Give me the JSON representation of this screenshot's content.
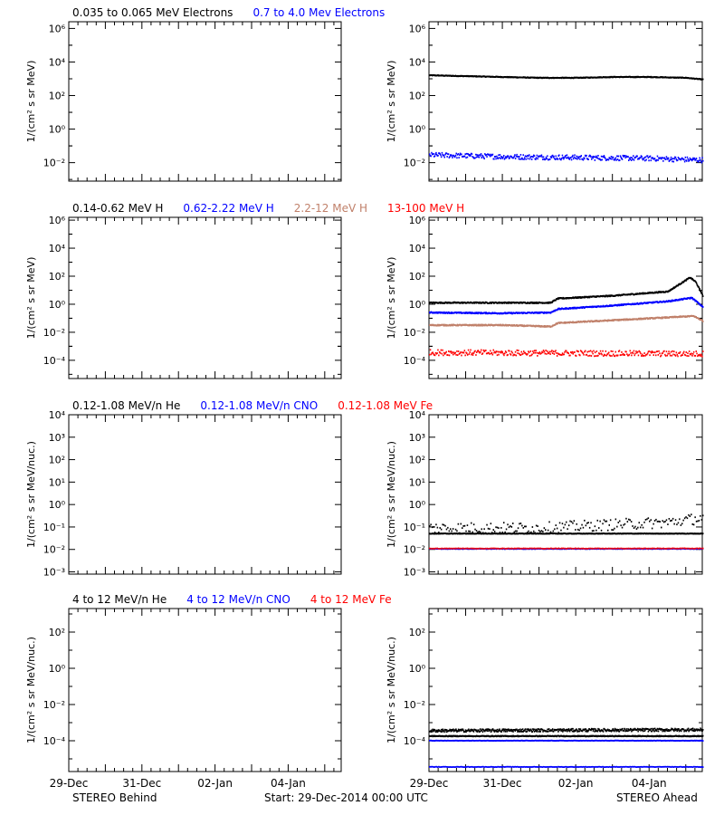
{
  "colors": {
    "black": "#000000",
    "blue": "#0000ff",
    "tan": "#c0806a",
    "red": "#ff0000",
    "background": "#ffffff"
  },
  "footer": {
    "left": "STEREO Behind",
    "center": "Start: 29-Dec-2014 00:00 UTC",
    "right": "STEREO Ahead"
  },
  "chart_data": [
    {
      "id": "electrons",
      "type": "scatter",
      "ylabel": "1/(cm² s sr MeV)",
      "y_scale": "log",
      "ylim_exp": [
        -3.1,
        6.4
      ],
      "y_tick_exponents": [
        -2,
        0,
        2,
        4,
        6
      ],
      "xlim": [
        0,
        7.45
      ],
      "x_tick_labels": [
        "29-Dec",
        "31-Dec",
        "02-Jan",
        "04-Jan"
      ],
      "x_tick_days": [
        0,
        2,
        4,
        6
      ],
      "header_labels": [
        {
          "text": "0.035 to 0.065 MeV Electrons",
          "color": "#000000"
        },
        {
          "text": "0.7 to 4.0 Mev Electrons",
          "color": "#0000ff"
        }
      ],
      "behind_series": [],
      "ahead_series": [
        {
          "color": "#000000",
          "points": [
            [
              0,
              3.2
            ],
            [
              1,
              3.15
            ],
            [
              2,
              3.1
            ],
            [
              3,
              3.05
            ],
            [
              4,
              3.05
            ],
            [
              5,
              3.1
            ],
            [
              6,
              3.1
            ],
            [
              7,
              3.05
            ],
            [
              7.45,
              2.95
            ]
          ],
          "noise": 0.02,
          "density": 100
        },
        {
          "color": "#0000ff",
          "points": [
            [
              0,
              -1.55
            ],
            [
              2,
              -1.65
            ],
            [
              4,
              -1.7
            ],
            [
              6,
              -1.75
            ],
            [
              7.45,
              -1.85
            ]
          ],
          "noise": 0.15,
          "density": 70
        }
      ]
    },
    {
      "id": "protons",
      "type": "scatter",
      "ylabel": "1/(cm² s sr MeV)",
      "y_scale": "log",
      "ylim_exp": [
        -5.3,
        6.2
      ],
      "y_tick_exponents": [
        -4,
        -2,
        0,
        2,
        4,
        6
      ],
      "xlim": [
        0,
        7.45
      ],
      "x_tick_labels": [
        "29-Dec",
        "31-Dec",
        "02-Jan",
        "04-Jan"
      ],
      "x_tick_days": [
        0,
        2,
        4,
        6
      ],
      "header_labels": [
        {
          "text": "0.14-0.62 MeV H",
          "color": "#000000"
        },
        {
          "text": "0.62-2.22 MeV H",
          "color": "#0000ff"
        },
        {
          "text": "2.2-12 MeV H",
          "color": "#c0806a"
        },
        {
          "text": "13-100 MeV H",
          "color": "#ff0000"
        }
      ],
      "behind_series": [],
      "ahead_series": [
        {
          "color": "#000000",
          "points": [
            [
              0,
              0.1
            ],
            [
              2,
              0.1
            ],
            [
              3.3,
              0.1
            ],
            [
              3.5,
              0.4
            ],
            [
              5,
              0.6
            ],
            [
              6.5,
              0.9
            ],
            [
              7.1,
              1.9
            ],
            [
              7.25,
              1.6
            ],
            [
              7.45,
              0.6
            ]
          ],
          "noise": 0.04,
          "density": 100
        },
        {
          "color": "#0000ff",
          "points": [
            [
              0,
              -0.6
            ],
            [
              2,
              -0.65
            ],
            [
              3.3,
              -0.6
            ],
            [
              3.5,
              -0.35
            ],
            [
              5,
              -0.1
            ],
            [
              6.5,
              0.2
            ],
            [
              7.15,
              0.45
            ],
            [
              7.45,
              -0.2
            ]
          ],
          "noise": 0.04,
          "density": 100
        },
        {
          "color": "#c0806a",
          "points": [
            [
              0,
              -1.5
            ],
            [
              2,
              -1.5
            ],
            [
              3.3,
              -1.6
            ],
            [
              3.5,
              -1.35
            ],
            [
              5,
              -1.15
            ],
            [
              6.5,
              -0.95
            ],
            [
              7.2,
              -0.85
            ],
            [
              7.45,
              -1.2
            ]
          ],
          "noise": 0.04,
          "density": 100
        },
        {
          "color": "#ff0000",
          "points": [
            [
              0,
              -3.45
            ],
            [
              7.45,
              -3.55
            ]
          ],
          "noise": 0.2,
          "density": 60
        }
      ]
    },
    {
      "id": "low-energy-ions",
      "type": "scatter",
      "ylabel": "1/(cm² s sr MeV/nuc.)",
      "y_scale": "log",
      "ylim_exp": [
        -3.1,
        4.0
      ],
      "y_tick_exponents": [
        -3,
        -2,
        -1,
        0,
        1,
        2,
        3,
        4
      ],
      "xlim": [
        0,
        7.45
      ],
      "x_tick_labels": [
        "29-Dec",
        "31-Dec",
        "02-Jan",
        "04-Jan"
      ],
      "x_tick_days": [
        0,
        2,
        4,
        6
      ],
      "header_labels": [
        {
          "text": "0.12-1.08 MeV/n He",
          "color": "#000000"
        },
        {
          "text": "0.12-1.08 MeV/n CNO",
          "color": "#0000ff"
        },
        {
          "text": "0.12-1.08 MeV Fe",
          "color": "#ff0000"
        }
      ],
      "behind_series": [],
      "ahead_series": [
        {
          "color": "#000000",
          "points": [
            [
              0,
              -1.3
            ],
            [
              7.45,
              -1.3
            ]
          ],
          "noise": 0.01,
          "density": 100
        },
        {
          "color": "#000000",
          "points": [
            [
              0,
              -1.05
            ],
            [
              3,
              -1.05
            ],
            [
              5,
              -0.9
            ],
            [
              6.5,
              -0.8
            ],
            [
              7.45,
              -0.6
            ]
          ],
          "noise": 0.25,
          "density": 35
        },
        {
          "color": "#0000ff",
          "points": [
            [
              0,
              -1.98
            ],
            [
              7.45,
              -1.98
            ]
          ],
          "noise": 0.01,
          "density": 45
        },
        {
          "color": "#ff0000",
          "points": [
            [
              0,
              -1.96
            ],
            [
              7.45,
              -1.96
            ]
          ],
          "noise": 0.01,
          "density": 30
        }
      ]
    },
    {
      "id": "high-energy-ions",
      "type": "scatter",
      "ylabel": "1/(cm² s sr MeV/nuc.)",
      "y_scale": "log",
      "ylim_exp": [
        -5.7,
        3.3
      ],
      "y_tick_exponents": [
        -4,
        -2,
        0,
        2
      ],
      "xlim": [
        0,
        7.45
      ],
      "x_tick_labels": [
        "29-Dec",
        "31-Dec",
        "02-Jan",
        "04-Jan"
      ],
      "x_tick_days": [
        0,
        2,
        4,
        6
      ],
      "header_labels": [
        {
          "text": "4 to 12 MeV/n He",
          "color": "#000000"
        },
        {
          "text": "4 to 12 MeV/n CNO",
          "color": "#0000ff"
        },
        {
          "text": "4 to 12 MeV Fe",
          "color": "#ff0000"
        }
      ],
      "behind_series": [],
      "ahead_series": [
        {
          "color": "#000000",
          "points": [
            [
              0,
              -3.45
            ],
            [
              7.45,
              -3.4
            ]
          ],
          "noise": 0.08,
          "density": 90
        },
        {
          "color": "#000000",
          "points": [
            [
              0,
              -3.75
            ],
            [
              7.45,
              -3.75
            ]
          ],
          "noise": 0.02,
          "density": 100
        },
        {
          "color": "#0000ff",
          "points": [
            [
              0,
              -4.0
            ],
            [
              7.45,
              -4.0
            ]
          ],
          "noise": 0.01,
          "density": 60
        },
        {
          "color": "#0000ff",
          "points": [
            [
              0,
              -5.45
            ],
            [
              7.45,
              -5.45
            ]
          ],
          "noise": 0.01,
          "density": 40
        }
      ]
    }
  ]
}
